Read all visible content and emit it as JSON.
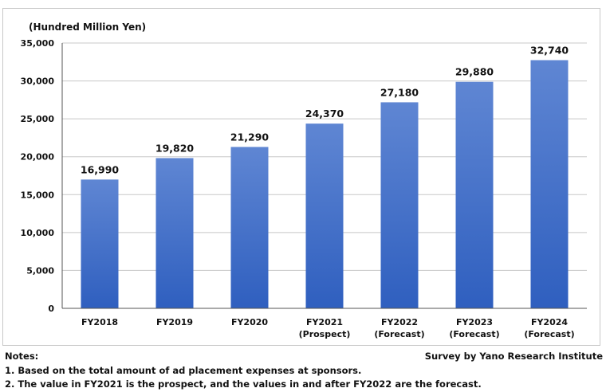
{
  "unit_label": "(Hundred Million Yen)",
  "notes": {
    "heading": "Notes:",
    "lines": [
      "1. Based on the total amount of ad placement expenses at sponsors.",
      "2. The value in FY2021 is the prospect, and the values in and after FY2022 are the forecast."
    ]
  },
  "source": "Survey by Yano Research Institute",
  "colors": {
    "bar_top": "#5f86d3",
    "bar_bottom": "#2f5fbf",
    "grid": "#c8c8c8",
    "axis": "#555555"
  },
  "chart_data": {
    "type": "bar",
    "categories": [
      [
        "FY2018"
      ],
      [
        "FY2019"
      ],
      [
        "FY2020"
      ],
      [
        "FY2021",
        "(Prospect)"
      ],
      [
        "FY2022",
        "(Forecast)"
      ],
      [
        "FY2023",
        "(Forecast)"
      ],
      [
        "FY2024",
        "(Forecast)"
      ]
    ],
    "values": [
      16990,
      19820,
      21290,
      24370,
      27180,
      29880,
      32740
    ],
    "value_labels": [
      "16,990",
      "19,820",
      "21,290",
      "24,370",
      "27,180",
      "29,880",
      "32,740"
    ],
    "y_ticks": [
      0,
      5000,
      10000,
      15000,
      20000,
      25000,
      30000,
      35000
    ],
    "y_tick_labels": [
      "0",
      "5,000",
      "10,000",
      "15,000",
      "20,000",
      "25,000",
      "30,000",
      "35,000"
    ],
    "ylim": [
      0,
      35000
    ],
    "grid": true,
    "legend": "none"
  }
}
